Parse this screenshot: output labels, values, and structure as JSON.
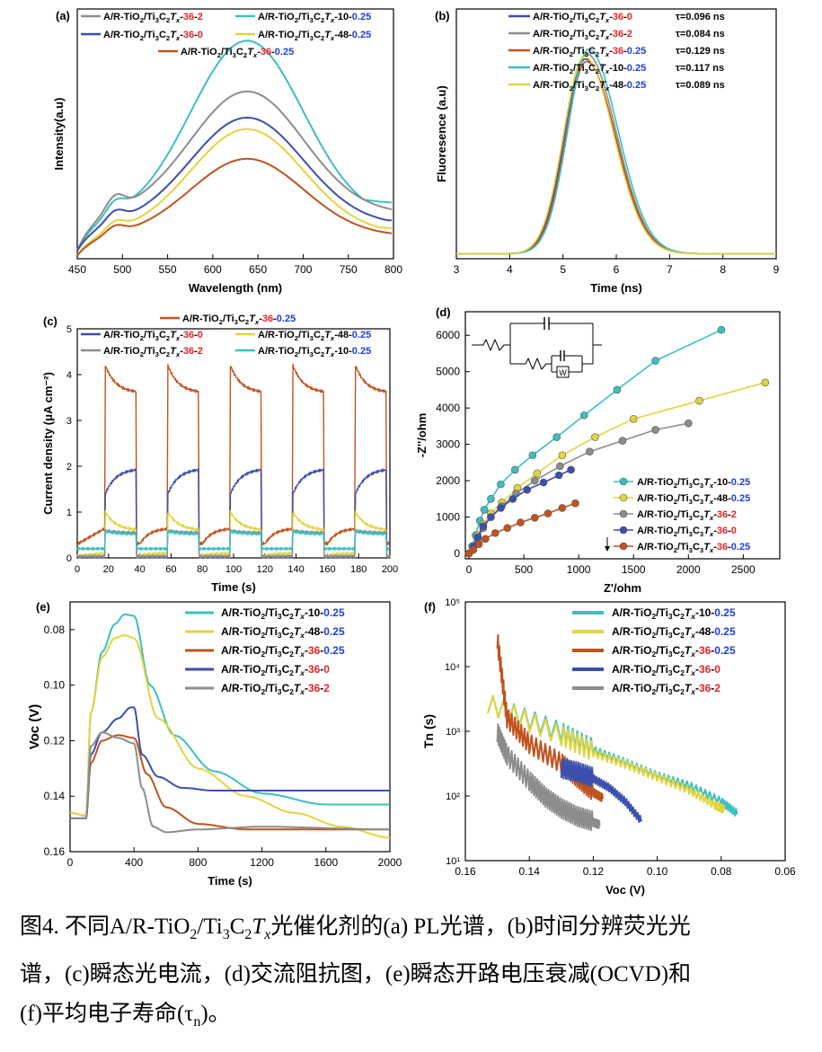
{
  "colors": {
    "gray": "#8c8c8c",
    "blue": "#3b4fae",
    "red": "#c0531f",
    "cyan": "#3cbfbf",
    "yellow": "#e2d440",
    "accent_red": "#e8222a",
    "accent_blue": "#1f3fd6"
  },
  "chart_data": [
    {
      "panel": "(a)",
      "type": "line",
      "xlabel": "Wavelength (nm)",
      "ylabel": "Intensity(a.u)",
      "xlim": [
        450,
        800
      ],
      "xticks": [
        "450",
        "500",
        "550",
        "600",
        "650",
        "700",
        "750",
        "800"
      ],
      "legend": [
        "A/R-TiO2/Ti3C2Tx-36-2",
        "A/R-TiO2/Ti3C2Tx-10-0.25",
        "A/R-TiO2/Ti3C2Tx-36-0",
        "A/R-TiO2/Ti3C2Tx-48-0.25",
        "A/R-TiO2/Ti3C2Tx-36-0.25"
      ],
      "peak_nm": 638,
      "series": [
        {
          "name": "A/R-TiO2/Ti3C2Tx-10-0.25",
          "color": "cyan",
          "peak": 0.86,
          "base": 0.03,
          "shoulder": 0.14,
          "end": 0.22
        },
        {
          "name": "A/R-TiO2/Ti3C2Tx-36-2",
          "color": "gray",
          "peak": 0.66,
          "base": 0.03,
          "shoulder": 0.17,
          "end": 0.17
        },
        {
          "name": "A/R-TiO2/Ti3C2Tx-36-0",
          "color": "blue",
          "peak": 0.55,
          "base": 0.03,
          "shoulder": 0.12,
          "end": 0.15
        },
        {
          "name": "A/R-TiO2/Ti3C2Tx-48-0.25",
          "color": "yellow",
          "peak": 0.52,
          "base": 0.01,
          "shoulder": 0.1,
          "end": 0.12
        },
        {
          "name": "A/R-TiO2/Ti3C2Tx-36-0.25",
          "color": "red",
          "peak": 0.4,
          "base": 0.01,
          "shoulder": 0.09,
          "end": 0.1
        }
      ]
    },
    {
      "panel": "(b)",
      "type": "line",
      "xlabel": "Time (ns)",
      "ylabel": "Fluoresence (a.u)",
      "xlim": [
        3,
        9
      ],
      "xticks": [
        "3",
        "4",
        "5",
        "6",
        "7",
        "8",
        "9"
      ],
      "legend": [
        "A/R-TiO2/Ti3C2Tx-36-0",
        "A/R-TiO2/Ti3C2Tx-36-2",
        "A/R-TiO2/Ti3C2Tx-36-0.25",
        "A/R-TiO2/Ti3C2Tx-10-0.25",
        "A/R-TiO2/Ti3C2Tx-48-0.25"
      ],
      "tau": [
        "τ=0.096 ns",
        "τ=0.084 ns",
        "τ=0.129 ns",
        "τ=0.117 ns",
        "τ=0.089 ns"
      ],
      "series": [
        {
          "name": "A/R-TiO2/Ti3C2Tx-36-0",
          "color": "blue",
          "center": 5.42,
          "peak": 0.78
        },
        {
          "name": "A/R-TiO2/Ti3C2Tx-36-2",
          "color": "gray",
          "center": 5.45,
          "peak": 0.8
        },
        {
          "name": "A/R-TiO2/Ti3C2Tx-36-0.25",
          "color": "red",
          "center": 5.44,
          "peak": 0.77
        },
        {
          "name": "A/R-TiO2/Ti3C2Tx-10-0.25",
          "color": "cyan",
          "center": 5.48,
          "peak": 0.82
        },
        {
          "name": "A/R-TiO2/Ti3C2Tx-48-0.25",
          "color": "yellow",
          "center": 5.4,
          "peak": 0.79
        }
      ]
    },
    {
      "panel": "(c)",
      "type": "line",
      "xlabel": "Time (s)",
      "ylabel": "Current density (μA cm⁻²)",
      "xlim": [
        0,
        200
      ],
      "ylim": [
        0,
        5
      ],
      "xticks": [
        "0",
        "20",
        "40",
        "60",
        "80",
        "100",
        "120",
        "140",
        "160",
        "180",
        "200"
      ],
      "yticks": [
        "0",
        "1",
        "2",
        "3",
        "4",
        "5"
      ],
      "legend": [
        "A/R-TiO2/Ti3C2Tx-36-0.25",
        "A/R-TiO2/Ti3C2Tx-36-0",
        "A/R-TiO2/Ti3C2Tx-48-0.25",
        "A/R-TiO2/Ti3C2Tx-36-2",
        "A/R-TiO2/Ti3C2Tx-10-0.25"
      ],
      "series": [
        {
          "name": "A/R-TiO2/Ti3C2Tx-36-0.25",
          "color": "red",
          "on_start": 4.2,
          "on_end": 3.6,
          "off_low": 0.3,
          "off_high": 0.65
        },
        {
          "name": "A/R-TiO2/Ti3C2Tx-36-0",
          "color": "blue",
          "on_start": 1.4,
          "on_end": 1.95,
          "off_low": 0.02,
          "off_high": 0.02
        },
        {
          "name": "A/R-TiO2/Ti3C2Tx-48-0.25",
          "color": "yellow",
          "on_start": 1.0,
          "on_end": 0.6,
          "off_low": 0.05,
          "off_high": 0.1
        },
        {
          "name": "A/R-TiO2/Ti3C2Tx-36-2",
          "color": "gray",
          "on_start": 0.6,
          "on_end": 0.55,
          "off_low": 0.03,
          "off_high": 0.03
        },
        {
          "name": "A/R-TiO2/Ti3C2Tx-10-0.25",
          "color": "cyan",
          "on_start": 0.58,
          "on_end": 0.52,
          "off_low": 0.2,
          "off_high": 0.2
        }
      ]
    },
    {
      "panel": "(d)",
      "type": "scatter",
      "xlabel": "Z'/ohm",
      "ylabel": "-Z''/ohm",
      "xlim": [
        0,
        2800
      ],
      "ylim": [
        0,
        6500
      ],
      "xticks": [
        "0",
        "500",
        "1000",
        "1500",
        "2000",
        "2500"
      ],
      "yticks": [
        "0",
        "1000",
        "2000",
        "3000",
        "4000",
        "5000",
        "6000"
      ],
      "legend": [
        "A/R-TiO2/Ti3C3Tx-10-0.25",
        "A/R-TiO2/Ti3C3Tx-48-0.25",
        "A/R-TiO2/Ti3C3Tx-36-2",
        "A/R-TiO2/Ti3C3Tx-36-0",
        "A/R-TiO2/Ti3C3Tx-36-0.25"
      ],
      "circuit_label": "W",
      "series": [
        {
          "name": "A/R-TiO2/Ti3C3Tx-10-0.25",
          "color": "cyan",
          "x": [
            0,
            30,
            60,
            100,
            140,
            200,
            290,
            420,
            580,
            800,
            1050,
            1350,
            1700,
            2300
          ],
          "y": [
            0,
            200,
            500,
            900,
            1200,
            1500,
            1900,
            2300,
            2700,
            3200,
            3800,
            4500,
            5300,
            6150
          ]
        },
        {
          "name": "A/R-TiO2/Ti3C3Tx-48-0.25",
          "color": "yellow",
          "x": [
            0,
            40,
            80,
            130,
            200,
            300,
            440,
            620,
            850,
            1150,
            1500,
            2100,
            2700
          ],
          "y": [
            0,
            200,
            500,
            800,
            1100,
            1400,
            1800,
            2200,
            2700,
            3200,
            3700,
            4200,
            4700
          ]
        },
        {
          "name": "A/R-TiO2/Ti3C3Tx-36-2",
          "color": "gray",
          "x": [
            0,
            40,
            80,
            130,
            200,
            300,
            430,
            600,
            830,
            1100,
            1400,
            1700,
            2000
          ],
          "y": [
            0,
            150,
            400,
            700,
            1000,
            1300,
            1650,
            2000,
            2400,
            2800,
            3100,
            3400,
            3580
          ]
        },
        {
          "name": "A/R-TiO2/Ti3C3Tx-36-0",
          "color": "blue",
          "x": [
            0,
            40,
            80,
            130,
            200,
            290,
            400,
            530,
            680,
            820,
            930
          ],
          "y": [
            0,
            180,
            450,
            750,
            1000,
            1250,
            1500,
            1750,
            1950,
            2150,
            2300
          ]
        },
        {
          "name": "A/R-TiO2/Ti3C3Tx-36-0.25",
          "color": "red",
          "x": [
            0,
            40,
            90,
            150,
            240,
            350,
            470,
            600,
            720,
            850,
            970
          ],
          "y": [
            0,
            100,
            250,
            400,
            560,
            700,
            850,
            980,
            1100,
            1250,
            1380
          ]
        }
      ]
    },
    {
      "panel": "(e)",
      "type": "line",
      "xlabel": "Time (s)",
      "ylabel": "Voc (V)",
      "xlim": [
        0,
        2000
      ],
      "ylim": [
        0.16,
        0.07
      ],
      "y_inverted": true,
      "xticks": [
        "0",
        "400",
        "800",
        "1200",
        "1600",
        "2000"
      ],
      "yticks": [
        "0.08",
        "0.10",
        "0.12",
        "0.14",
        "0.16"
      ],
      "legend": [
        "A/R-TiO2/Ti3C2Tx-10-0.25",
        "A/R-TiO2/Ti3C2Tx-48-0.25",
        "A/R-TiO2/Ti3C2Tx-36-0.25",
        "A/R-TiO2/Ti3C2Tx-36-0",
        "A/R-TiO2/Ti3C2Tx-36-2"
      ],
      "series": [
        {
          "name": "A/R-TiO2/Ti3C2Tx-10-0.25",
          "color": "cyan",
          "x": [
            0,
            100,
            130,
            200,
            280,
            340,
            400,
            500,
            650,
            900,
            1200,
            1600,
            2000
          ],
          "y": [
            0.146,
            0.147,
            0.11,
            0.088,
            0.078,
            0.0745,
            0.075,
            0.1,
            0.118,
            0.131,
            0.139,
            0.143,
            0.143
          ]
        },
        {
          "name": "A/R-TiO2/Ti3C2Tx-48-0.25",
          "color": "yellow",
          "x": [
            0,
            100,
            130,
            200,
            280,
            340,
            400,
            550,
            800,
            1100,
            1400,
            1700,
            2000
          ],
          "y": [
            0.146,
            0.147,
            0.11,
            0.09,
            0.083,
            0.082,
            0.083,
            0.112,
            0.13,
            0.14,
            0.146,
            0.151,
            0.155
          ]
        },
        {
          "name": "A/R-TiO2/Ti3C2Tx-36-0.25",
          "color": "red",
          "x": [
            0,
            100,
            130,
            200,
            300,
            400,
            480,
            600,
            800,
            1100,
            1500,
            2000
          ],
          "y": [
            0.148,
            0.148,
            0.128,
            0.12,
            0.118,
            0.119,
            0.132,
            0.144,
            0.15,
            0.152,
            0.152,
            0.152
          ]
        },
        {
          "name": "A/R-TiO2/Ti3C2Tx-36-0",
          "color": "blue",
          "x": [
            0,
            100,
            130,
            200,
            300,
            380,
            400,
            450,
            550,
            700,
            900,
            1300,
            2000
          ],
          "y": [
            0.148,
            0.148,
            0.125,
            0.117,
            0.112,
            0.108,
            0.108,
            0.125,
            0.133,
            0.137,
            0.138,
            0.138,
            0.138
          ]
        },
        {
          "name": "A/R-TiO2/Ti3C2Tx-36-2",
          "color": "gray",
          "x": [
            0,
            100,
            130,
            200,
            300,
            400,
            450,
            520,
            600,
            800,
            1200,
            2000
          ],
          "y": [
            0.148,
            0.148,
            0.122,
            0.117,
            0.119,
            0.121,
            0.137,
            0.151,
            0.153,
            0.152,
            0.151,
            0.152
          ]
        }
      ]
    },
    {
      "panel": "(f)",
      "type": "line",
      "xlabel": "Voc (V)",
      "ylabel": "Tn (s)",
      "y_scale": "log",
      "xlim": [
        0.16,
        0.06
      ],
      "ylim": [
        10,
        100000
      ],
      "xticks": [
        "0.16",
        "0.14",
        "0.12",
        "0.10",
        "0.08",
        "0.06"
      ],
      "yticks": [
        "10¹",
        "10²",
        "10³",
        "10⁴",
        "10⁵"
      ],
      "legend": [
        "A/R-TiO2/Ti3C2Tx-10-0.25",
        "A/R-TiO2/Ti3C2Tx-48-0.25",
        "A/R-TiO2/Ti3C2Tx-36-0.25",
        "A/R-TiO2/Ti3C2Tx-36-0",
        "A/R-TiO2/Ti3C2Tx-36-2"
      ],
      "series": [
        {
          "name": "A/R-TiO2/Ti3C2Tx-10-0.25",
          "color": "cyan",
          "x": [
            0.153,
            0.13,
            0.12,
            0.11,
            0.1,
            0.09,
            0.08,
            0.075
          ],
          "y": [
            2500,
            900,
            500,
            320,
            200,
            140,
            80,
            52
          ]
        },
        {
          "name": "A/R-TiO2/Ti3C2Tx-48-0.25",
          "color": "yellow",
          "x": [
            0.153,
            0.13,
            0.12,
            0.11,
            0.1,
            0.09,
            0.082,
            0.079
          ],
          "y": [
            2500,
            800,
            450,
            300,
            190,
            120,
            70,
            60
          ]
        },
        {
          "name": "A/R-TiO2/Ti3C2Tx-36-0.25",
          "color": "red",
          "x": [
            0.15,
            0.147,
            0.14,
            0.13,
            0.125,
            0.12,
            0.117
          ],
          "y": [
            25000,
            1500,
            600,
            300,
            180,
            110,
            90
          ]
        },
        {
          "name": "A/R-TiO2/Ti3C2Tx-36-0",
          "color": "blue",
          "x": [
            0.13,
            0.125,
            0.12,
            0.115,
            0.11,
            0.105
          ],
          "y": [
            250,
            220,
            180,
            130,
            80,
            40
          ]
        },
        {
          "name": "A/R-TiO2/Ti3C2Tx-36-2",
          "color": "gray",
          "x": [
            0.15,
            0.147,
            0.14,
            0.135,
            0.13,
            0.125,
            0.12,
            0.118
          ],
          "y": [
            900,
            400,
            160,
            90,
            60,
            45,
            38,
            35
          ]
        }
      ]
    }
  ],
  "caption": {
    "line1_prefix": "图4. 不同A/R-TiO",
    "line1_sub1": "2",
    "line1_mid1": "/Ti",
    "line1_sub2": "3",
    "line1_mid2": "C",
    "line1_sub3": "2",
    "line1_T": "T",
    "line1_sub4": "x",
    "line1_suffix": "光催化剂的(a) PL光谱，(b)时间分辨荧光光",
    "line2": "谱，(c)瞬态光电流，(d)交流阻抗图，(e)瞬态开路电压衰减(OCVD)和",
    "line3_prefix": "(f)平均电子寿命(τ",
    "line3_sub": "n",
    "line3_suffix": ")。"
  }
}
